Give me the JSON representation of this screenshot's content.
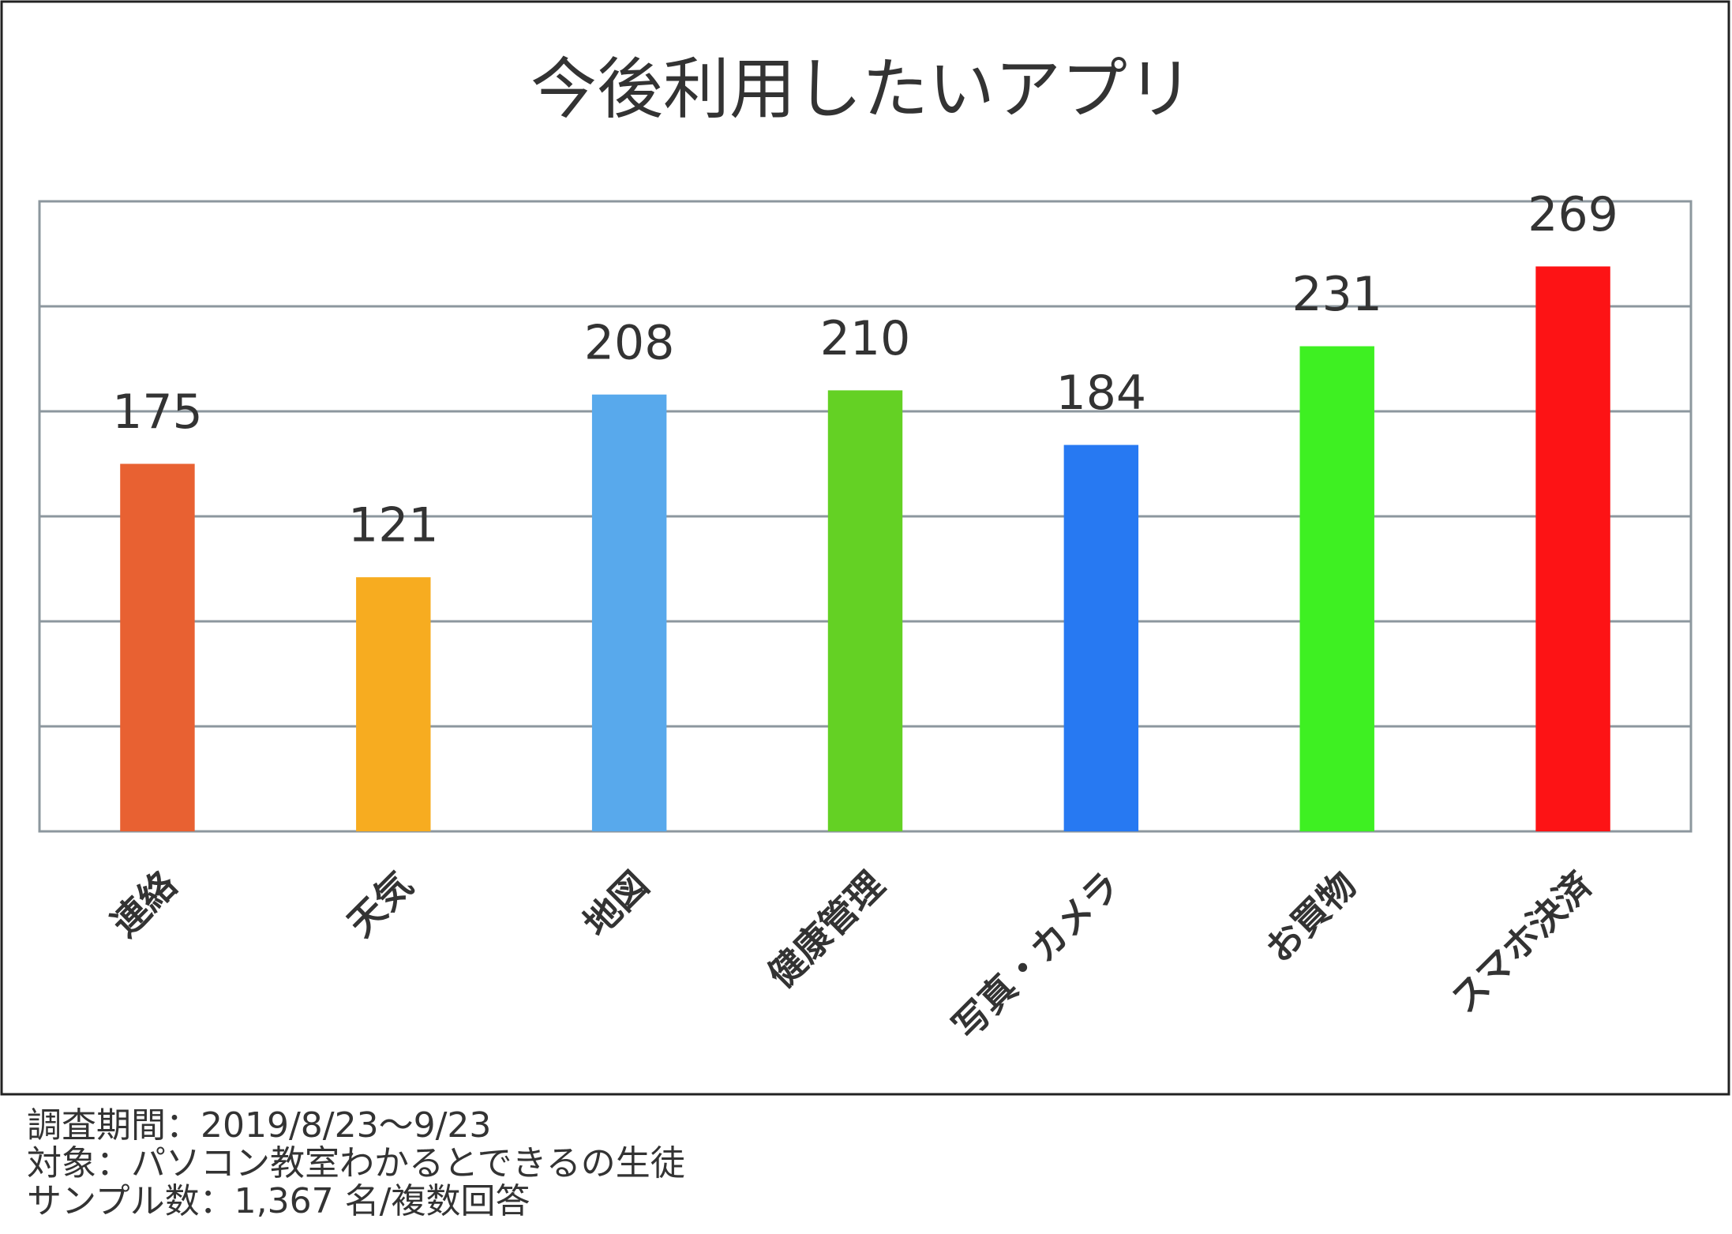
{
  "chart_data": {
    "type": "bar",
    "title": "今後利用したいアプリ",
    "categories": [
      "連絡",
      "天気",
      "地図",
      "健康管理",
      "写真・カメラ",
      "お買物",
      "スマホ決済"
    ],
    "values": [
      175,
      121,
      208,
      210,
      184,
      231,
      269
    ],
    "colors": [
      "#e86132",
      "#f7ac20",
      "#58a9ec",
      "#64d124",
      "#2779f2",
      "#3ef022",
      "#fd1315"
    ],
    "ylim": [
      0,
      300
    ],
    "yticks": [
      0,
      50,
      100,
      150,
      200,
      250,
      300
    ],
    "grid": true,
    "notes": [
      "調査期間：2019/8/23～9/23",
      "対象：パソコン教室わかるとできるの生徒",
      "サンプル数：1,367 名/複数回答"
    ]
  }
}
